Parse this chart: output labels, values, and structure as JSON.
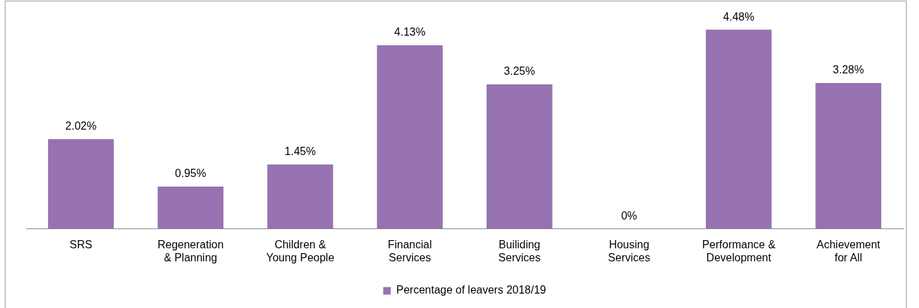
{
  "chart_data": {
    "type": "bar",
    "categories": [
      "SRS",
      "Regeneration & Planning",
      "Children & Young People",
      "Financial Services",
      "Builiding Services",
      "Housing Services",
      "Performance & Development",
      "Achievement for All"
    ],
    "series": [
      {
        "name": "Percentage of leavers 2018/19",
        "color": "#9673b0",
        "values": [
          2.02,
          0.95,
          1.45,
          4.13,
          3.25,
          0,
          4.48,
          3.28
        ],
        "value_labels": [
          "2.02%",
          "0.95%",
          "1.45%",
          "4.13%",
          "3.25%",
          "0%",
          "4.48%",
          "3.28%"
        ]
      }
    ],
    "grid": false,
    "legend": "bottom"
  }
}
